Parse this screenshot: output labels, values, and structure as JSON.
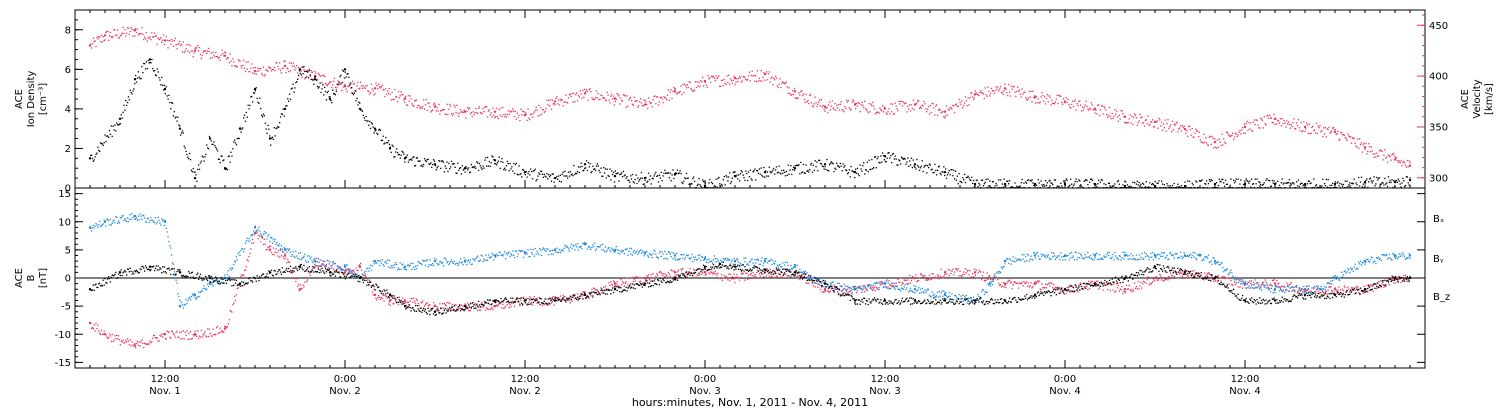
{
  "colors": {
    "black": "#000000",
    "magenta": "#e8365e",
    "blue": "#1f8be0"
  },
  "chart_data": [
    {
      "type": "scatter",
      "panel": "top",
      "ylabel_left": [
        "ACE",
        "Ion Density",
        "[cm⁻³]"
      ],
      "ylabel_right": [
        "ACE",
        "Velocity",
        "[km/s]"
      ],
      "x_unit": "hours since Nov. 1, 2011 00:00",
      "xlim": [
        6,
        96
      ],
      "ylim_left": [
        0,
        9
      ],
      "yticks_left": [
        0,
        2,
        4,
        6,
        8
      ],
      "ylim_right": [
        290,
        465
      ],
      "yticks_right": [
        300,
        350,
        400,
        450
      ],
      "series": [
        {
          "axis": "left",
          "color": "#000000",
          "x": [
            7,
            9,
            10,
            11,
            12,
            13,
            14,
            15,
            16,
            17,
            18,
            19,
            20,
            21,
            22,
            23,
            24,
            25,
            26,
            27,
            28,
            30,
            32,
            34,
            36,
            38,
            40,
            42,
            44,
            46,
            48,
            50,
            52,
            54,
            56,
            58,
            60,
            62,
            64,
            66,
            68,
            70,
            72,
            74,
            76,
            78,
            80,
            82,
            84,
            86,
            88,
            90,
            92,
            94,
            95
          ],
          "y": [
            1.5,
            3.5,
            5.5,
            6.5,
            5.0,
            3.0,
            0.5,
            2.5,
            1.0,
            3.0,
            5.0,
            2.5,
            4.0,
            6.0,
            5.5,
            4.5,
            6.0,
            4.0,
            3.0,
            2.0,
            1.5,
            1.2,
            1.0,
            1.4,
            0.8,
            0.5,
            1.2,
            0.6,
            0.5,
            0.7,
            0.1,
            0.6,
            0.8,
            1.0,
            1.2,
            0.8,
            1.6,
            1.2,
            0.8,
            0.2,
            0.2,
            0.2,
            0.2,
            0.2,
            0.1,
            0.1,
            0.1,
            0.2,
            0.2,
            0.2,
            0.2,
            0.2,
            0.3,
            0.3,
            0.4
          ]
        },
        {
          "axis": "right",
          "color": "#e8365e",
          "x": [
            7,
            8,
            10,
            12,
            14,
            16,
            18,
            20,
            22,
            24,
            26,
            28,
            30,
            32,
            34,
            36,
            38,
            40,
            42,
            44,
            46,
            48,
            50,
            52,
            54,
            56,
            58,
            60,
            62,
            64,
            66,
            68,
            70,
            72,
            74,
            76,
            78,
            80,
            82,
            84,
            86,
            88,
            90,
            92,
            94,
            95
          ],
          "y": [
            430,
            440,
            445,
            435,
            425,
            420,
            405,
            410,
            400,
            390,
            388,
            378,
            370,
            365,
            365,
            362,
            375,
            383,
            378,
            372,
            385,
            395,
            398,
            402,
            385,
            370,
            372,
            368,
            372,
            365,
            382,
            388,
            380,
            375,
            368,
            360,
            355,
            348,
            335,
            350,
            358,
            350,
            345,
            330,
            318,
            312
          ]
        }
      ]
    },
    {
      "type": "scatter",
      "panel": "bottom",
      "ylabel_left": [
        "ACE",
        "B",
        "[nT]"
      ],
      "x_unit": "hours since Nov. 1, 2011 00:00",
      "xlim": [
        6,
        96
      ],
      "ylim": [
        -16,
        16
      ],
      "yticks": [
        -15,
        -10,
        -5,
        0,
        5,
        10,
        15
      ],
      "zero_line": true,
      "series": [
        {
          "name": "Bₓ",
          "color": "#000000",
          "x": [
            7,
            9,
            11,
            13,
            15,
            17,
            19,
            21,
            23,
            25,
            27,
            28,
            30,
            32,
            34,
            36,
            38,
            40,
            42,
            44,
            46,
            48,
            49,
            50,
            52,
            54,
            56,
            58,
            60,
            62,
            64,
            66,
            68,
            70,
            72,
            74,
            76,
            78,
            80,
            82,
            84,
            86,
            88,
            90,
            92,
            94,
            95
          ],
          "y": [
            -2,
            1,
            2,
            1,
            0,
            -1,
            1,
            2,
            1,
            0,
            -3,
            -5,
            -6,
            -5,
            -4,
            -4,
            -4,
            -3,
            -2,
            -1,
            0,
            2,
            2.5,
            2,
            1.5,
            1,
            -1,
            -4,
            -4,
            -4,
            -4,
            -4,
            -4,
            -3,
            -2,
            -1,
            0,
            2,
            1,
            0,
            -4,
            -4,
            -3,
            -3,
            -2,
            0,
            0
          ]
        },
        {
          "name": "Bᵧ",
          "color": "#1f8be0",
          "x": [
            7,
            8,
            10,
            12,
            13,
            14,
            15,
            16,
            18,
            20,
            22,
            24,
            25,
            26,
            28,
            30,
            32,
            34,
            36,
            38,
            40,
            42,
            44,
            46,
            48,
            50,
            52,
            54,
            55,
            56,
            58,
            60,
            62,
            64,
            66,
            67,
            68,
            70,
            72,
            74,
            76,
            78,
            80,
            81,
            82,
            84,
            86,
            88,
            89,
            90,
            92,
            94,
            95
          ],
          "y": [
            9,
            10,
            11,
            10,
            -5,
            -3,
            -1,
            0,
            9,
            5,
            3,
            2,
            0,
            3,
            2,
            3,
            3,
            4,
            4.5,
            5,
            6,
            5,
            4.5,
            4,
            3.5,
            3,
            3,
            2,
            0,
            -1,
            -2,
            -1,
            -2,
            -3,
            -4,
            -1,
            3,
            4,
            4,
            4,
            4,
            4,
            4,
            4,
            3,
            -1,
            -2,
            -2,
            -2,
            0,
            3,
            4,
            4
          ]
        },
        {
          "name": "B_z",
          "color": "#e8365e",
          "x": [
            7,
            8,
            10,
            12,
            14,
            16,
            18,
            19,
            20,
            21,
            22,
            24,
            25,
            26,
            27,
            28,
            30,
            32,
            34,
            36,
            38,
            40,
            42,
            44,
            46,
            48,
            50,
            52,
            54,
            56,
            58,
            60,
            62,
            64,
            66,
            68,
            70,
            72,
            74,
            76,
            78,
            80,
            82,
            84,
            86,
            88,
            90,
            92,
            94,
            95
          ],
          "y": [
            -8,
            -10,
            -12,
            -10,
            -10,
            -9,
            8,
            5,
            4,
            -2,
            3,
            1,
            2,
            -3,
            -4,
            -4,
            -5,
            -5,
            -5,
            -4,
            -4,
            -3,
            -1,
            0,
            1,
            1,
            0,
            1,
            1,
            -2,
            -2,
            -1,
            0,
            1,
            1,
            -1,
            -1,
            -2,
            -1,
            -2,
            0,
            1,
            0,
            -1,
            -1,
            -2,
            -2,
            -2,
            0,
            0
          ]
        }
      ]
    }
  ],
  "x_axis": {
    "ticks": [
      {
        "hour": 12,
        "time": "12:00",
        "day": "Nov. 1"
      },
      {
        "hour": 24,
        "time": "0:00",
        "day": "Nov. 2"
      },
      {
        "hour": 36,
        "time": "12:00",
        "day": "Nov. 2"
      },
      {
        "hour": 48,
        "time": "0:00",
        "day": "Nov. 3"
      },
      {
        "hour": 60,
        "time": "12:00",
        "day": "Nov. 3"
      },
      {
        "hour": 72,
        "time": "0:00",
        "day": "Nov. 4"
      },
      {
        "hour": 84,
        "time": "12:00",
        "day": "Nov. 4"
      }
    ],
    "xlabel": "hours:minutes, Nov.  1, 2011 - Nov.  4, 2011"
  }
}
